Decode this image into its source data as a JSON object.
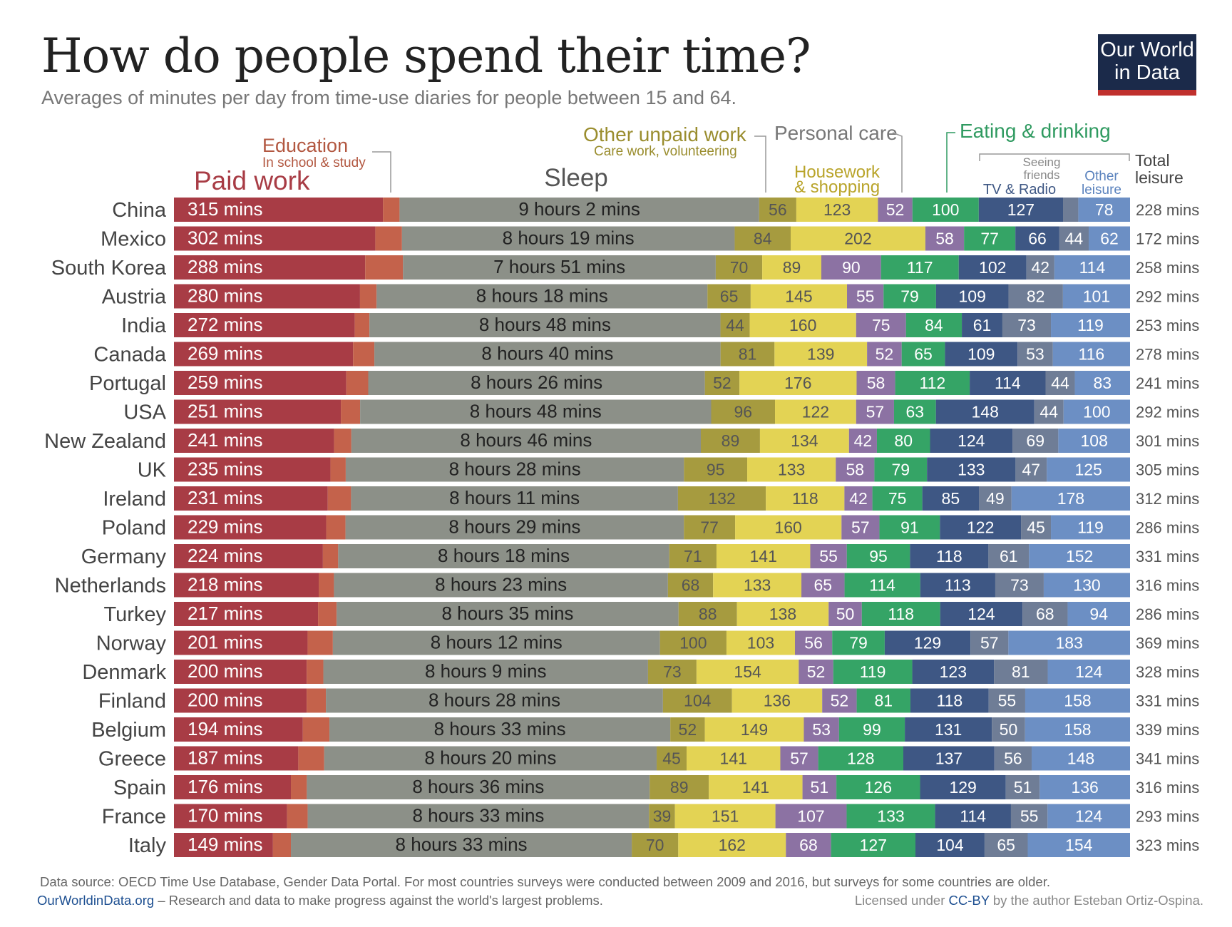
{
  "title": "How do people spend their time?",
  "subtitle": "Averages of minutes per day from time-use diaries for people between 15 and 64.",
  "logo": {
    "line1": "Our World",
    "line2": "in Data"
  },
  "footer": {
    "source": "Data source: OECD Time Use Database, Gender Data Portal. For most countries surveys were conducted between 2009 and 2016, but surveys for some countries are older.",
    "site_link": "OurWorldinData.org",
    "site_text": "– Research and data to make progress against the world's largest problems.",
    "license_prefix": "Licensed under",
    "license_link": "CC-BY",
    "license_suffix": "by the author Esteban Ortiz-Ospina."
  },
  "chart_data": {
    "type": "bar",
    "orientation": "horizontal-stacked",
    "unit": "minutes per day",
    "categories": [
      "China",
      "Mexico",
      "South Korea",
      "Austria",
      "India",
      "Canada",
      "Portugal",
      "USA",
      "New Zealand",
      "UK",
      "Ireland",
      "Poland",
      "Germany",
      "Netherlands",
      "Turkey",
      "Norway",
      "Denmark",
      "Finland",
      "Belgium",
      "Greece",
      "Spain",
      "France",
      "Italy"
    ],
    "series": [
      {
        "key": "paid",
        "name": "Paid work",
        "color": "#a83c45",
        "label_suffix": " mins",
        "values": [
          315,
          302,
          288,
          280,
          272,
          269,
          259,
          251,
          241,
          235,
          231,
          229,
          224,
          218,
          217,
          201,
          200,
          200,
          194,
          187,
          176,
          170,
          149
        ]
      },
      {
        "key": "edu",
        "name": "Education",
        "sublabel": "In school & study",
        "color": "#c4624b",
        "values": [
          25,
          40,
          57,
          25,
          22,
          32,
          33,
          29,
          26,
          23,
          35,
          29,
          23,
          23,
          28,
          38,
          25,
          29,
          40,
          39,
          24,
          31,
          27
        ]
      },
      {
        "key": "sleep",
        "name": "Sleep",
        "color": "#8c9088",
        "values": [
          542,
          499,
          471,
          498,
          528,
          520,
          506,
          528,
          526,
          508,
          491,
          509,
          498,
          503,
          515,
          492,
          489,
          508,
          513,
          500,
          516,
          513,
          513
        ],
        "labels": [
          "9 hours 2 mins",
          "8 hours 19 mins",
          "7 hours 51 mins",
          "8 hours 18 mins",
          "8 hours 48 mins",
          "8 hours 40 mins",
          "8 hours 26 mins",
          "8 hours 48 mins",
          "8 hours 46 mins",
          "8 hours 28 mins",
          "8 hours 11 mins",
          "8 hours 29 mins",
          "8 hours 18 mins",
          "8 hours 23 mins",
          "8 hours 35 mins",
          "8 hours 12 mins",
          "8 hours 9 mins",
          "8 hours 28 mins",
          "8 hours 33 mins",
          "8 hours 20 mins",
          "8 hours 36 mins",
          "8 hours 33 mins",
          "8 hours 33 mins"
        ]
      },
      {
        "key": "unpaid",
        "name": "Other unpaid work",
        "sublabel": "Care work, volunteering",
        "color": "#a69b3f",
        "values": [
          56,
          84,
          70,
          65,
          44,
          81,
          52,
          96,
          89,
          95,
          132,
          77,
          71,
          68,
          88,
          100,
          73,
          104,
          52,
          45,
          89,
          39,
          70
        ]
      },
      {
        "key": "house",
        "name": "Housework & shopping",
        "color": "#e3d354",
        "values": [
          123,
          202,
          89,
          145,
          160,
          139,
          176,
          122,
          134,
          133,
          118,
          160,
          141,
          133,
          138,
          103,
          154,
          136,
          149,
          141,
          141,
          151,
          162
        ]
      },
      {
        "key": "care",
        "name": "Personal care",
        "color": "#8c72a3",
        "values": [
          52,
          58,
          90,
          55,
          75,
          52,
          58,
          57,
          42,
          58,
          42,
          57,
          55,
          65,
          50,
          56,
          52,
          52,
          53,
          57,
          51,
          107,
          68
        ]
      },
      {
        "key": "eat",
        "name": "Eating & drinking",
        "color": "#35a466",
        "values": [
          100,
          77,
          117,
          79,
          84,
          65,
          112,
          63,
          80,
          79,
          75,
          91,
          95,
          114,
          118,
          79,
          119,
          81,
          99,
          128,
          126,
          133,
          127
        ]
      },
      {
        "key": "tv",
        "name": "TV & Radio",
        "color": "#3e5784",
        "values": [
          127,
          66,
          102,
          109,
          61,
          109,
          114,
          148,
          124,
          133,
          85,
          122,
          118,
          113,
          124,
          129,
          123,
          118,
          131,
          137,
          129,
          114,
          104
        ]
      },
      {
        "key": "friends",
        "name": "Seeing friends",
        "color": "#6f7d96",
        "values": [
          23,
          44,
          42,
          82,
          73,
          53,
          44,
          44,
          69,
          47,
          49,
          45,
          61,
          73,
          68,
          57,
          81,
          55,
          50,
          56,
          51,
          55,
          65
        ]
      },
      {
        "key": "other",
        "name": "Other leisure",
        "color": "#6c8fc4",
        "values": [
          78,
          62,
          114,
          101,
          119,
          116,
          83,
          100,
          108,
          125,
          178,
          119,
          152,
          130,
          94,
          183,
          124,
          158,
          158,
          148,
          136,
          124,
          154
        ]
      }
    ],
    "total_leisure": {
      "name": "Total leisure",
      "values": [
        228,
        172,
        258,
        292,
        253,
        278,
        241,
        292,
        301,
        305,
        312,
        286,
        331,
        316,
        286,
        369,
        328,
        331,
        339,
        341,
        316,
        293,
        323
      ],
      "label_suffix": " mins"
    },
    "header_labels": {
      "paid": "Paid work",
      "education": "Education",
      "education_sub": "In school & study",
      "sleep": "Sleep",
      "unpaid": "Other unpaid work",
      "unpaid_sub": "Care work, volunteering",
      "personal_care": "Personal care",
      "housework_1": "Housework",
      "housework_2": "& shopping",
      "eating": "Eating & drinking",
      "seeing_1": "Seeing",
      "seeing_2": "friends",
      "tv": "TV & Radio",
      "other_1": "Other",
      "other_2": "leisure",
      "total_1": "Total",
      "total_2": "leisure"
    }
  }
}
